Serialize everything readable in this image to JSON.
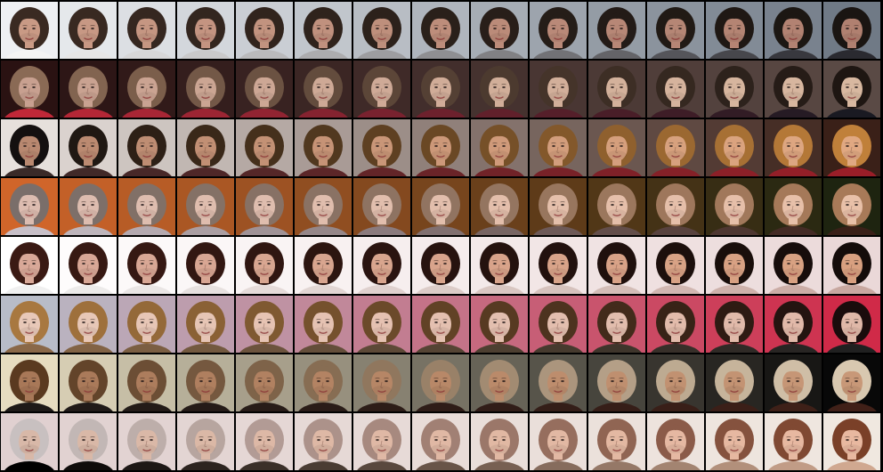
{
  "grid": {
    "rows": 8,
    "columns": 15,
    "border_color": "#000000",
    "row_endpoints": [
      {
        "from": {
          "bg": "#eef0f3",
          "hair": "#3a2a22",
          "skin": "#c99a85",
          "shirt": "#f4f4f4"
        },
        "to": {
          "bg": "#707a86",
          "hair": "#1a1512",
          "skin": "#b08070",
          "shirt": "#2a2a30"
        }
      },
      {
        "from": {
          "bg": "#2a1212",
          "hair": "#8a6a55",
          "skin": "#c8a090",
          "shirt": "#c02838"
        },
        "to": {
          "bg": "#5a4a45",
          "hair": "#1e1612",
          "skin": "#d8b8a0",
          "shirt": "#1a1a22"
        }
      },
      {
        "from": {
          "bg": "#e6e0dc",
          "hair": "#141010",
          "skin": "#b88870",
          "shirt": "#3a2a28"
        },
        "to": {
          "bg": "#3a2018",
          "hair": "#c0803a",
          "skin": "#e0a882",
          "shirt": "#9a1e28"
        }
      },
      {
        "from": {
          "bg": "#d0652a",
          "hair": "#7a6e6a",
          "skin": "#dcbcb0",
          "shirt": "#c8c0c8"
        },
        "to": {
          "bg": "#1e2410",
          "hair": "#a87a58",
          "skin": "#e8c0a8",
          "shirt": "#3a2018"
        }
      },
      {
        "from": {
          "bg": "#ffffff",
          "hair": "#3a1a14",
          "skin": "#d8a898",
          "shirt": "#f0f0f0"
        },
        "to": {
          "bg": "#ead8d8",
          "hair": "#140c0a",
          "skin": "#d8a080",
          "shirt": "#c8a8a0"
        }
      },
      {
        "from": {
          "bg": "#b8bcc8",
          "hair": "#a87840",
          "skin": "#e8c8b8",
          "shirt": "#8a6848"
        },
        "to": {
          "bg": "#d02a48",
          "hair": "#1a0c0c",
          "skin": "#e0b8a8",
          "shirt": "#202020"
        }
      },
      {
        "from": {
          "bg": "#e6dcc0",
          "hair": "#5a3a20",
          "skin": "#a87858",
          "shirt": "#1e1a18"
        },
        "to": {
          "bg": "#080808",
          "hair": "#d8c8b0",
          "skin": "#c89878",
          "shirt": "#402018"
        }
      },
      {
        "from": {
          "bg": "#e0d0d0",
          "hair": "#c8c0c0",
          "skin": "#d8b8a8",
          "shirt": "#000000"
        },
        "to": {
          "bg": "#f0e8e0",
          "hair": "#7a4028",
          "skin": "#e8b8a0",
          "shirt": "#d0a890"
        }
      }
    ]
  }
}
